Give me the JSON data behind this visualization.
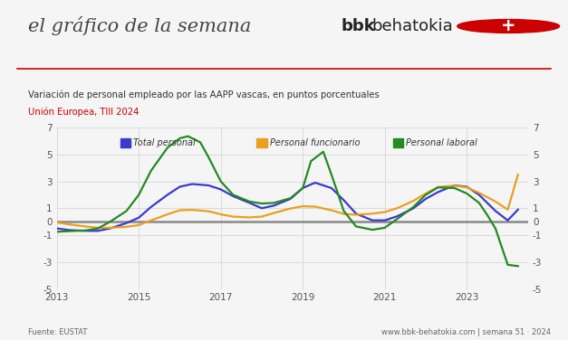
{
  "title_left": "el gráfico de la semana",
  "subtitle": "Variación de personal empleado por las AAPP vascas, en puntos porcentuales",
  "subtitle2": "Unión Europea, TIII 2024",
  "subtitle2_color": "#cc0000",
  "source": "Fuente: EUSTAT",
  "footer": "www.bbk-behatokia.com | semana 51 · 2024",
  "legend": [
    "Total personal",
    "Personal funcionario",
    "Personal laboral"
  ],
  "legend_colors": [
    "#3a3acc",
    "#e8a020",
    "#228B22"
  ],
  "ylim": [
    -5,
    7
  ],
  "yticks": [
    -5,
    -3,
    -1,
    0,
    1,
    3,
    5,
    7
  ],
  "xlim": [
    2013,
    2024.5
  ],
  "xticks": [
    2013,
    2015,
    2017,
    2019,
    2021,
    2023
  ],
  "x_total": [
    2013.0,
    2013.3,
    2013.7,
    2014.0,
    2014.3,
    2014.7,
    2015.0,
    2015.3,
    2015.7,
    2016.0,
    2016.3,
    2016.7,
    2017.0,
    2017.3,
    2017.7,
    2018.0,
    2018.3,
    2018.7,
    2019.0,
    2019.3,
    2019.7,
    2020.0,
    2020.3,
    2020.7,
    2021.0,
    2021.3,
    2021.7,
    2022.0,
    2022.3,
    2022.7,
    2023.0,
    2023.3,
    2023.7,
    2024.0,
    2024.25
  ],
  "y_total": [
    -0.5,
    -0.62,
    -0.68,
    -0.68,
    -0.5,
    -0.1,
    0.3,
    1.1,
    2.0,
    2.6,
    2.8,
    2.7,
    2.4,
    1.9,
    1.4,
    1.0,
    1.2,
    1.7,
    2.5,
    2.9,
    2.5,
    1.6,
    0.6,
    0.1,
    0.1,
    0.4,
    1.0,
    1.7,
    2.2,
    2.7,
    2.6,
    2.0,
    0.8,
    0.1,
    0.9
  ],
  "x_func": [
    2013.0,
    2013.3,
    2013.7,
    2014.0,
    2014.3,
    2014.7,
    2015.0,
    2015.3,
    2015.7,
    2016.0,
    2016.3,
    2016.7,
    2017.0,
    2017.3,
    2017.7,
    2018.0,
    2018.3,
    2018.7,
    2019.0,
    2019.3,
    2019.7,
    2020.0,
    2020.3,
    2020.7,
    2021.0,
    2021.3,
    2021.7,
    2022.0,
    2022.3,
    2022.7,
    2023.0,
    2023.3,
    2023.7,
    2024.0,
    2024.25
  ],
  "y_func": [
    -0.05,
    -0.2,
    -0.35,
    -0.45,
    -0.45,
    -0.38,
    -0.25,
    0.1,
    0.55,
    0.85,
    0.88,
    0.78,
    0.55,
    0.38,
    0.32,
    0.38,
    0.65,
    0.98,
    1.15,
    1.12,
    0.85,
    0.58,
    0.52,
    0.6,
    0.72,
    1.0,
    1.55,
    2.1,
    2.58,
    2.68,
    2.55,
    2.15,
    1.5,
    0.9,
    3.5
  ],
  "x_labor": [
    2013.0,
    2013.3,
    2013.7,
    2014.0,
    2014.3,
    2014.7,
    2015.0,
    2015.3,
    2015.7,
    2016.0,
    2016.2,
    2016.5,
    2016.7,
    2017.0,
    2017.3,
    2017.7,
    2018.0,
    2018.3,
    2018.7,
    2019.0,
    2019.2,
    2019.5,
    2019.7,
    2020.0,
    2020.3,
    2020.7,
    2021.0,
    2021.3,
    2021.7,
    2022.0,
    2022.3,
    2022.7,
    2023.0,
    2023.3,
    2023.5,
    2023.7,
    2024.0,
    2024.25
  ],
  "y_labor": [
    -0.75,
    -0.7,
    -0.65,
    -0.5,
    0.0,
    0.8,
    2.0,
    3.8,
    5.5,
    6.2,
    6.35,
    5.9,
    4.8,
    3.0,
    2.0,
    1.5,
    1.35,
    1.4,
    1.75,
    2.5,
    4.5,
    5.2,
    3.5,
    0.8,
    -0.35,
    -0.6,
    -0.45,
    0.2,
    1.1,
    2.0,
    2.55,
    2.5,
    2.1,
    1.4,
    0.5,
    -0.5,
    -3.2,
    -3.3
  ],
  "background_color": "#f5f5f5",
  "header_bg": "#ffffff",
  "grid_color": "#d0d0d0",
  "zero_line_color": "#888888",
  "line_width": 1.6
}
